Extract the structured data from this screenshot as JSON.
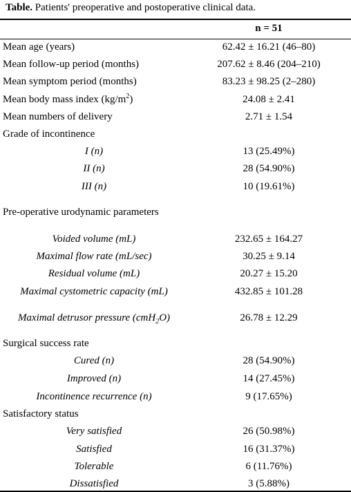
{
  "caption": {
    "bold": "Table.",
    "text": " Patients' preoperative and postoperative clinical data."
  },
  "header": {
    "n": "n = 51"
  },
  "rows": [
    {
      "label": "Mean age (years)",
      "value": "62.42 ± 16.21 (46–80)"
    },
    {
      "label": "Mean follow-up period (months)",
      "value": "207.62 ± 8.46 (204–210)"
    },
    {
      "label": "Mean symptom period (months)",
      "value": "83.23 ± 98.25 (2–280)"
    },
    {
      "label_prefix": "Mean body mass index (kg/m",
      "label_sup": "2",
      "label_suffix": ")",
      "value": "24.08 ± 2.41"
    },
    {
      "label": "Mean numbers of delivery",
      "value": "2.71 ± 1.54"
    },
    {
      "label": "Grade of incontinence",
      "value": ""
    },
    {
      "label": "I (n)",
      "value": "13 (25.49%)"
    },
    {
      "label": "II (n)",
      "value": "28 (54.90%)"
    },
    {
      "label": "III (n)",
      "value": "10 (19.61%)"
    },
    {
      "label": "Pre-operative urodynamic parameters",
      "value": ""
    },
    {
      "label": "Voided volume (mL)",
      "value": "232.65 ± 164.27"
    },
    {
      "label": "Maximal flow rate (mL/sec)",
      "value": "30.25 ± 9.14"
    },
    {
      "label": "Residual volume (mL)",
      "value": "20.27 ± 15.20"
    },
    {
      "label": "Maximal cystometric capacity (mL)",
      "value": "432.85 ± 101.28"
    },
    {
      "label_prefix": "Maximal detrusor pressure (cmH",
      "label_sub": "2",
      "label_suffix": "O)",
      "value": "26.78 ± 12.29"
    },
    {
      "label": "Surgical success rate",
      "value": ""
    },
    {
      "label": "Cured (n)",
      "value": "28 (54.90%)"
    },
    {
      "label": "Improved (n)",
      "value": "14 (27.45%)"
    },
    {
      "label": "Incontinence recurrence (n)",
      "value": "9 (17.65%)"
    },
    {
      "label": "Satisfactory status",
      "value": ""
    },
    {
      "label": "Very satisfied",
      "value": "26 (50.98%)"
    },
    {
      "label": "Satisfied",
      "value": "16 (31.37%)"
    },
    {
      "label": "Tolerable",
      "value": "6 (11.76%)"
    },
    {
      "label": "Dissatisfied",
      "value": "3 (5.88%)"
    }
  ]
}
